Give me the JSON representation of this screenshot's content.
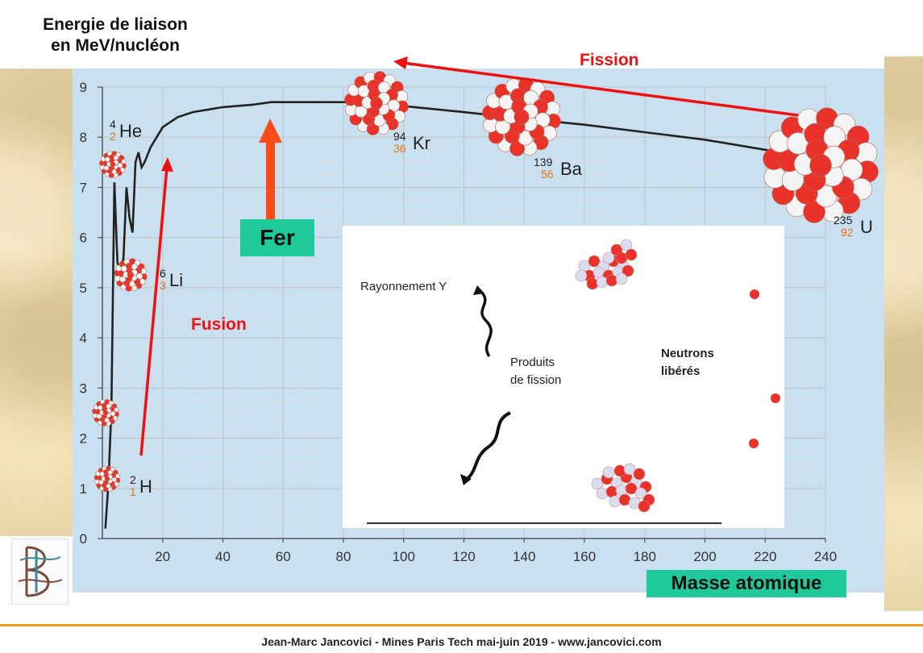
{
  "chart_data": {
    "type": "line",
    "ylabel_line1": "Energie de liaison",
    "ylabel_line2": "en MeV/nucléon",
    "xlabel": "Masse atomique",
    "xlim": [
      0,
      240
    ],
    "ylim": [
      0,
      9
    ],
    "x_ticks": [
      "20",
      "40",
      "60",
      "80",
      "100",
      "120",
      "140",
      "160",
      "180",
      "200",
      "220",
      "240"
    ],
    "y_ticks": [
      "0",
      "1",
      "2",
      "3",
      "4",
      "5",
      "6",
      "7",
      "8",
      "9"
    ],
    "grid": true,
    "series": [
      {
        "x": [
          1,
          2,
          3,
          4,
          5,
          6,
          7,
          8,
          9,
          10,
          11,
          12,
          13,
          14,
          16,
          20,
          25,
          30,
          40,
          50,
          56,
          60,
          70,
          80,
          90,
          100,
          120,
          140,
          160,
          180,
          200,
          220,
          235
        ],
        "values": [
          0.2,
          1.1,
          2.6,
          7.1,
          5.5,
          5.3,
          5.6,
          7.0,
          6.4,
          6.1,
          7.5,
          7.7,
          7.4,
          7.5,
          7.8,
          8.2,
          8.4,
          8.5,
          8.6,
          8.65,
          8.7,
          8.7,
          8.7,
          8.7,
          8.68,
          8.62,
          8.5,
          8.37,
          8.25,
          8.1,
          7.95,
          7.75,
          7.6
        ]
      }
    ],
    "isotopes": [
      {
        "symbol": "He",
        "A": "4",
        "Z": "2"
      },
      {
        "symbol": "Li",
        "A": "6",
        "Z": "3"
      },
      {
        "symbol": "H",
        "A": "2",
        "Z": "1"
      },
      {
        "symbol": "Kr",
        "A": "94",
        "Z": "36"
      },
      {
        "symbol": "Ba",
        "A": "139",
        "Z": "56"
      },
      {
        "symbol": "U",
        "A": "235",
        "Z": "92"
      }
    ],
    "annotations": {
      "fer": "Fer",
      "fission": "Fission",
      "fusion": "Fusion"
    }
  },
  "inset": {
    "rayonnement": "Rayonnement Y",
    "produits_line1": "Produits",
    "produits_line2": "de fission",
    "neutrons_line1": "Neutrons",
    "neutrons_line2": "libérés"
  },
  "footer": "Jean-Marc Jancovici - Mines Paris Tech mai-juin 2019 - www.jancovici.com",
  "colors": {
    "nucleus_red": "#e8322a",
    "nucleon_white": "#f4f4f4",
    "arrow_red": "#ee1111",
    "fer_arrow": "#ff4a1a",
    "green_box": "#1fc99a",
    "footer_line": "#f39a1d"
  }
}
